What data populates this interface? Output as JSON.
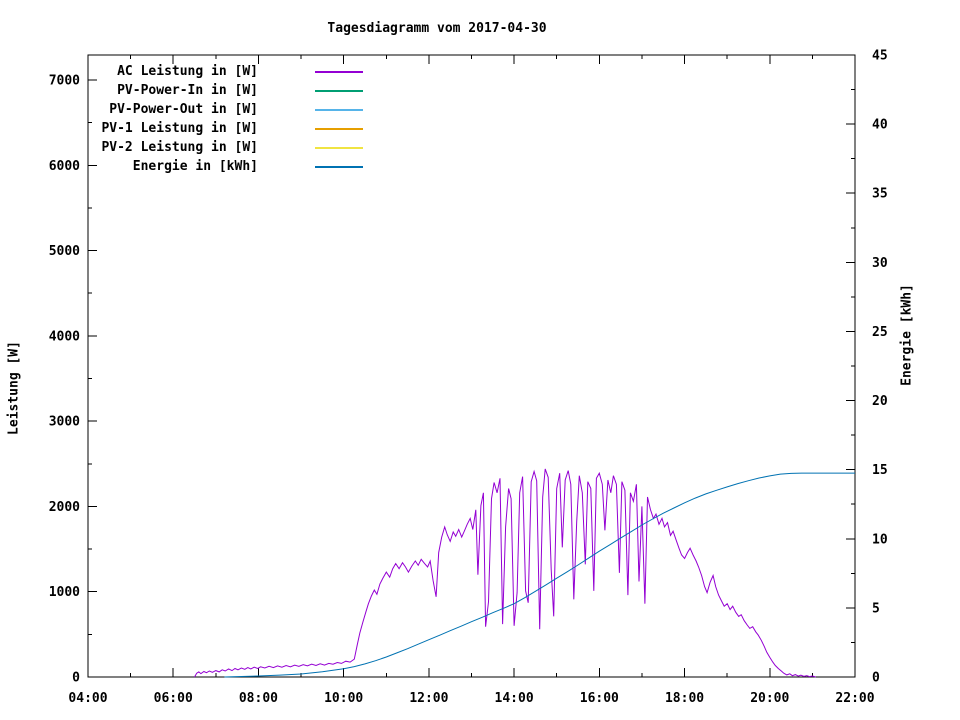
{
  "title": "Tagesdiagramm vom 2017-04-30",
  "chart_data": {
    "type": "line",
    "title": "Tagesdiagramm vom 2017-04-30",
    "grid": false,
    "legend_position": "top-left-inside",
    "x": {
      "unit": "time",
      "min_hour": 4,
      "max_hour": 22,
      "major_tick_hours": 2,
      "minor_tick_hours": 1,
      "tick_labels": [
        "04:00",
        "06:00",
        "08:00",
        "10:00",
        "12:00",
        "14:00",
        "16:00",
        "18:00",
        "20:00",
        "22:00"
      ]
    },
    "y_left": {
      "label": "Leistung [W]",
      "min": 0,
      "max": 7293,
      "major_tick": 1000,
      "minor_tick": 500,
      "tick_labels": [
        "0",
        "1000",
        "2000",
        "3000",
        "4000",
        "5000",
        "6000",
        "7000"
      ]
    },
    "y_right": {
      "label": "Energie [kWh]",
      "min": 0,
      "max": 45,
      "major_tick": 5,
      "minor_tick": 2.5,
      "tick_labels": [
        "0",
        "5",
        "10",
        "15",
        "20",
        "25",
        "30",
        "35",
        "40",
        "45"
      ]
    },
    "series": [
      {
        "name": "AC Leistung in [W]",
        "color": "#9400d3",
        "axis": "left",
        "points": [
          [
            6.5,
            0
          ],
          [
            6.55,
            45
          ],
          [
            6.6,
            60
          ],
          [
            6.65,
            40
          ],
          [
            6.72,
            65
          ],
          [
            6.78,
            50
          ],
          [
            6.85,
            70
          ],
          [
            6.92,
            55
          ],
          [
            7.0,
            75
          ],
          [
            7.08,
            60
          ],
          [
            7.15,
            85
          ],
          [
            7.22,
            70
          ],
          [
            7.3,
            95
          ],
          [
            7.38,
            75
          ],
          [
            7.45,
            100
          ],
          [
            7.52,
            85
          ],
          [
            7.6,
            105
          ],
          [
            7.68,
            90
          ],
          [
            7.75,
            110
          ],
          [
            7.82,
            95
          ],
          [
            7.9,
            115
          ],
          [
            7.98,
            100
          ],
          [
            8.05,
            120
          ],
          [
            8.15,
            105
          ],
          [
            8.25,
            125
          ],
          [
            8.35,
            110
          ],
          [
            8.45,
            130
          ],
          [
            8.55,
            115
          ],
          [
            8.65,
            135
          ],
          [
            8.75,
            120
          ],
          [
            8.85,
            140
          ],
          [
            8.95,
            125
          ],
          [
            9.05,
            145
          ],
          [
            9.15,
            130
          ],
          [
            9.25,
            150
          ],
          [
            9.35,
            135
          ],
          [
            9.45,
            155
          ],
          [
            9.55,
            140
          ],
          [
            9.65,
            160
          ],
          [
            9.75,
            150
          ],
          [
            9.85,
            170
          ],
          [
            9.95,
            160
          ],
          [
            10.05,
            185
          ],
          [
            10.15,
            175
          ],
          [
            10.25,
            210
          ],
          [
            10.32,
            380
          ],
          [
            10.38,
            520
          ],
          [
            10.45,
            640
          ],
          [
            10.52,
            760
          ],
          [
            10.58,
            860
          ],
          [
            10.65,
            950
          ],
          [
            10.72,
            1020
          ],
          [
            10.78,
            970
          ],
          [
            10.85,
            1090
          ],
          [
            10.92,
            1160
          ],
          [
            11.0,
            1230
          ],
          [
            11.08,
            1170
          ],
          [
            11.15,
            1270
          ],
          [
            11.22,
            1330
          ],
          [
            11.3,
            1270
          ],
          [
            11.38,
            1340
          ],
          [
            11.45,
            1290
          ],
          [
            11.52,
            1230
          ],
          [
            11.6,
            1300
          ],
          [
            11.68,
            1360
          ],
          [
            11.75,
            1310
          ],
          [
            11.82,
            1380
          ],
          [
            11.9,
            1330
          ],
          [
            11.97,
            1290
          ],
          [
            12.03,
            1360
          ],
          [
            12.1,
            1130
          ],
          [
            12.17,
            940
          ],
          [
            12.23,
            1460
          ],
          [
            12.3,
            1640
          ],
          [
            12.37,
            1760
          ],
          [
            12.43,
            1670
          ],
          [
            12.5,
            1590
          ],
          [
            12.57,
            1700
          ],
          [
            12.63,
            1650
          ],
          [
            12.7,
            1730
          ],
          [
            12.77,
            1640
          ],
          [
            12.83,
            1710
          ],
          [
            12.9,
            1790
          ],
          [
            12.97,
            1860
          ],
          [
            13.03,
            1730
          ],
          [
            13.1,
            1960
          ],
          [
            13.15,
            1200
          ],
          [
            13.22,
            2010
          ],
          [
            13.28,
            2160
          ],
          [
            13.33,
            590
          ],
          [
            13.4,
            880
          ],
          [
            13.47,
            2090
          ],
          [
            13.53,
            2280
          ],
          [
            13.6,
            2160
          ],
          [
            13.67,
            2330
          ],
          [
            13.73,
            620
          ],
          [
            13.8,
            1760
          ],
          [
            13.87,
            2210
          ],
          [
            13.93,
            2090
          ],
          [
            14.0,
            600
          ],
          [
            14.07,
            990
          ],
          [
            14.13,
            2160
          ],
          [
            14.2,
            2350
          ],
          [
            14.27,
            1010
          ],
          [
            14.33,
            870
          ],
          [
            14.4,
            2290
          ],
          [
            14.47,
            2410
          ],
          [
            14.53,
            2300
          ],
          [
            14.6,
            560
          ],
          [
            14.67,
            2110
          ],
          [
            14.73,
            2440
          ],
          [
            14.8,
            2340
          ],
          [
            14.87,
            1260
          ],
          [
            14.93,
            710
          ],
          [
            15.0,
            2210
          ],
          [
            15.07,
            2390
          ],
          [
            15.13,
            1520
          ],
          [
            15.2,
            2310
          ],
          [
            15.27,
            2420
          ],
          [
            15.33,
            2260
          ],
          [
            15.4,
            910
          ],
          [
            15.47,
            1820
          ],
          [
            15.53,
            2360
          ],
          [
            15.6,
            2160
          ],
          [
            15.67,
            1320
          ],
          [
            15.73,
            2290
          ],
          [
            15.8,
            2210
          ],
          [
            15.87,
            1010
          ],
          [
            15.93,
            2330
          ],
          [
            16.0,
            2390
          ],
          [
            16.07,
            2260
          ],
          [
            16.13,
            1720
          ],
          [
            16.2,
            2310
          ],
          [
            16.27,
            2160
          ],
          [
            16.33,
            2360
          ],
          [
            16.4,
            2260
          ],
          [
            16.47,
            1220
          ],
          [
            16.53,
            2290
          ],
          [
            16.6,
            2190
          ],
          [
            16.67,
            960
          ],
          [
            16.73,
            2160
          ],
          [
            16.8,
            2060
          ],
          [
            16.87,
            2260
          ],
          [
            16.93,
            1120
          ],
          [
            17.0,
            2000
          ],
          [
            17.07,
            860
          ],
          [
            17.13,
            2110
          ],
          [
            17.2,
            1960
          ],
          [
            17.27,
            1860
          ],
          [
            17.33,
            1910
          ],
          [
            17.4,
            1790
          ],
          [
            17.47,
            1860
          ],
          [
            17.53,
            1760
          ],
          [
            17.6,
            1810
          ],
          [
            17.67,
            1660
          ],
          [
            17.73,
            1710
          ],
          [
            17.8,
            1610
          ],
          [
            17.87,
            1510
          ],
          [
            17.93,
            1430
          ],
          [
            18.0,
            1390
          ],
          [
            18.07,
            1460
          ],
          [
            18.13,
            1510
          ],
          [
            18.2,
            1430
          ],
          [
            18.27,
            1360
          ],
          [
            18.33,
            1290
          ],
          [
            18.4,
            1190
          ],
          [
            18.47,
            1060
          ],
          [
            18.53,
            990
          ],
          [
            18.6,
            1110
          ],
          [
            18.67,
            1190
          ],
          [
            18.73,
            1060
          ],
          [
            18.8,
            960
          ],
          [
            18.87,
            890
          ],
          [
            18.93,
            830
          ],
          [
            19.0,
            860
          ],
          [
            19.07,
            790
          ],
          [
            19.13,
            830
          ],
          [
            19.2,
            760
          ],
          [
            19.27,
            710
          ],
          [
            19.33,
            730
          ],
          [
            19.4,
            660
          ],
          [
            19.47,
            610
          ],
          [
            19.53,
            570
          ],
          [
            19.6,
            590
          ],
          [
            19.67,
            530
          ],
          [
            19.73,
            490
          ],
          [
            19.8,
            430
          ],
          [
            19.87,
            360
          ],
          [
            19.93,
            290
          ],
          [
            20.0,
            230
          ],
          [
            20.07,
            175
          ],
          [
            20.13,
            135
          ],
          [
            20.2,
            100
          ],
          [
            20.27,
            70
          ],
          [
            20.33,
            45
          ],
          [
            20.4,
            25
          ],
          [
            20.47,
            38
          ],
          [
            20.53,
            15
          ],
          [
            20.6,
            28
          ],
          [
            20.67,
            10
          ],
          [
            20.73,
            22
          ],
          [
            20.8,
            8
          ],
          [
            20.87,
            16
          ],
          [
            20.93,
            5
          ],
          [
            21.0,
            12
          ],
          [
            21.08,
            0
          ]
        ]
      },
      {
        "name": "PV-Power-In in [W]",
        "color": "#009e73",
        "axis": "left",
        "points": []
      },
      {
        "name": "PV-Power-Out in [W]",
        "color": "#56b4e9",
        "axis": "left",
        "points": []
      },
      {
        "name": "PV-1 Leistung in [W]",
        "color": "#e69f00",
        "axis": "left",
        "points": []
      },
      {
        "name": "PV-2 Leistung in [W]",
        "color": "#f0e442",
        "axis": "left",
        "points": []
      },
      {
        "name": "Energie in [kWh]",
        "color": "#0072b2",
        "axis": "right",
        "points": [
          [
            7.2,
            0
          ],
          [
            7.5,
            0.03
          ],
          [
            8.0,
            0.07
          ],
          [
            8.5,
            0.14
          ],
          [
            9.0,
            0.22
          ],
          [
            9.5,
            0.38
          ],
          [
            10.0,
            0.6
          ],
          [
            10.25,
            0.75
          ],
          [
            10.5,
            0.95
          ],
          [
            10.75,
            1.18
          ],
          [
            11.0,
            1.45
          ],
          [
            11.25,
            1.74
          ],
          [
            11.5,
            2.05
          ],
          [
            11.75,
            2.37
          ],
          [
            12.0,
            2.7
          ],
          [
            12.25,
            3.02
          ],
          [
            12.5,
            3.35
          ],
          [
            12.75,
            3.67
          ],
          [
            13.0,
            4.0
          ],
          [
            13.25,
            4.32
          ],
          [
            13.5,
            4.65
          ],
          [
            13.75,
            4.97
          ],
          [
            14.0,
            5.3
          ],
          [
            14.25,
            5.74
          ],
          [
            14.5,
            6.2
          ],
          [
            14.75,
            6.67
          ],
          [
            15.0,
            7.15
          ],
          [
            15.25,
            7.62
          ],
          [
            15.5,
            8.1
          ],
          [
            15.75,
            8.6
          ],
          [
            16.0,
            9.1
          ],
          [
            16.25,
            9.57
          ],
          [
            16.5,
            10.05
          ],
          [
            16.75,
            10.52
          ],
          [
            17.0,
            11.0
          ],
          [
            17.25,
            11.43
          ],
          [
            17.5,
            11.85
          ],
          [
            17.75,
            12.23
          ],
          [
            18.0,
            12.6
          ],
          [
            18.25,
            12.94
          ],
          [
            18.5,
            13.25
          ],
          [
            18.75,
            13.51
          ],
          [
            19.0,
            13.75
          ],
          [
            19.25,
            13.99
          ],
          [
            19.5,
            14.2
          ],
          [
            19.75,
            14.4
          ],
          [
            20.0,
            14.55
          ],
          [
            20.25,
            14.68
          ],
          [
            20.5,
            14.73
          ],
          [
            20.75,
            14.75
          ],
          [
            21.0,
            14.75
          ],
          [
            21.5,
            14.75
          ],
          [
            22.0,
            14.75
          ]
        ]
      }
    ]
  },
  "colors": {
    "background": "#ffffff",
    "axis": "#000000"
  }
}
